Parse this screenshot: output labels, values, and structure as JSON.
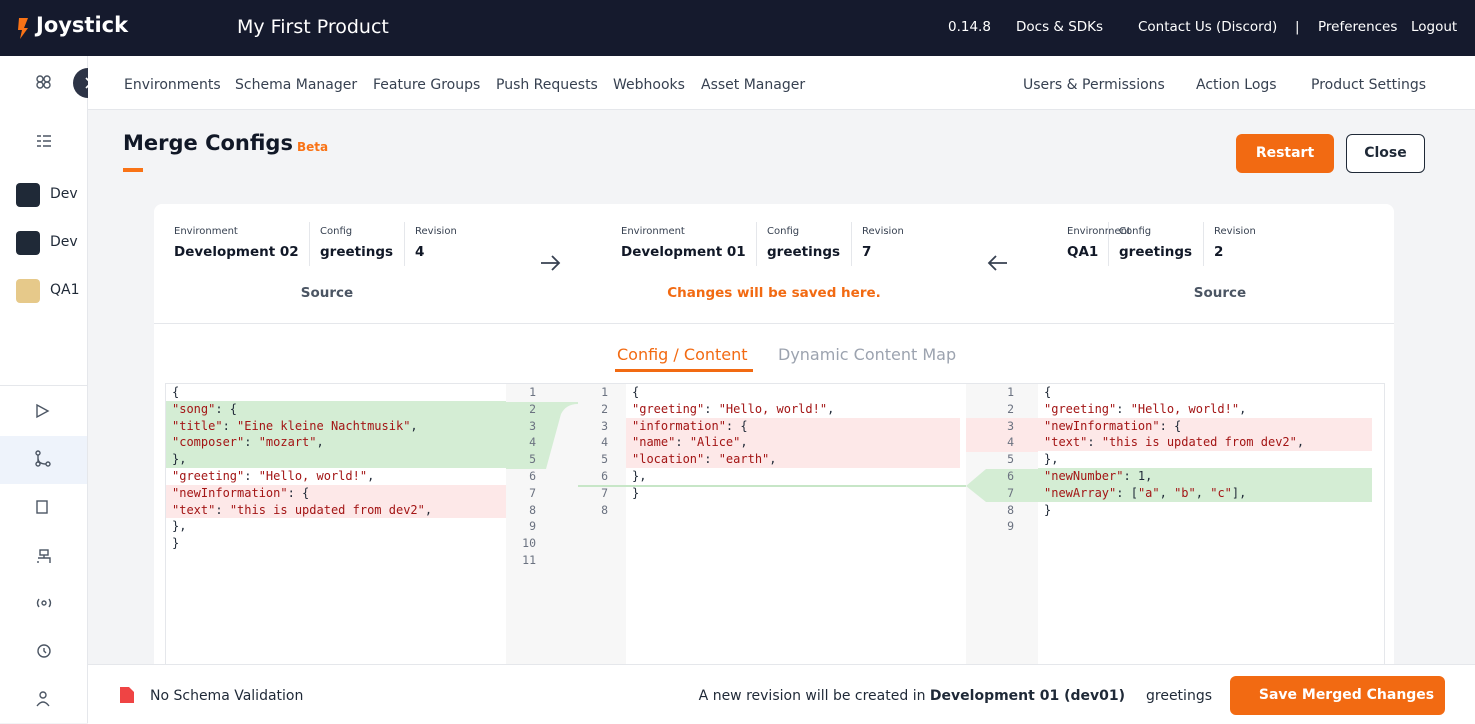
{
  "header": {
    "brand": "Joystick",
    "product": "My First Product",
    "version": "0.14.8",
    "links": [
      "Docs & SDKs",
      "Contact Us (Discord)",
      "|",
      "Preferences",
      "Logout"
    ]
  },
  "nav": {
    "tabs": [
      "Environments",
      "Schema Manager",
      "Feature Groups",
      "Push Requests",
      "Webhooks",
      "Asset Manager"
    ],
    "right": [
      "Users & Permissions",
      "Action Logs",
      "Product Settings"
    ]
  },
  "sidebar": {
    "items": [
      "Dev",
      "Dev",
      "QA1"
    ]
  },
  "page": {
    "title": "Merge Configs",
    "badge": "Beta",
    "restart": "Restart",
    "close": "Close"
  },
  "panels": [
    {
      "environment_label": "Environment",
      "environment": "Development 02",
      "config_label": "Config",
      "config": "greetings",
      "revision_label": "Revision",
      "revision": 4,
      "role": "Source"
    },
    {
      "environment_label": "Environment",
      "environment": "Development 01",
      "config_label": "Config",
      "config": "greetings",
      "revision_label": "Revision",
      "revision": 7,
      "role": "Changes will be saved here."
    },
    {
      "environment_label": "Environment",
      "environment": "QA1",
      "config_label": "Config",
      "config": "greetings",
      "revision_label": "Revision",
      "revision": 2,
      "role": "Source"
    }
  ],
  "tabs": [
    "Config / Content",
    "Dynamic Content Map"
  ],
  "editors": [
    {
      "line_numbers": [
        1,
        2,
        3,
        4,
        5,
        6,
        7,
        8,
        9,
        10,
        11
      ],
      "lines": [
        {
          "text": "{"
        },
        {
          "text": "  \"song\": {",
          "diff": "added"
        },
        {
          "text": "    \"title\": \"Eine kleine Nachtmusik\",",
          "diff": "added"
        },
        {
          "text": "    \"composer\": \"mozart\",",
          "diff": "added"
        },
        {
          "text": "  },",
          "diff": "added"
        },
        {
          "text": "  \"greeting\": \"Hello, world!\","
        },
        {
          "text": "  \"newInformation\": {",
          "diff": "removed"
        },
        {
          "text": "    \"text\": \"this is updated from dev2\",",
          "diff": "removed"
        },
        {
          "text": "  },"
        },
        {
          "text": "}"
        }
      ]
    },
    {
      "line_numbers": [
        1,
        2,
        3,
        4,
        5,
        6,
        7,
        8
      ],
      "lines": [
        {
          "text": "{"
        },
        {
          "text": "  \"greeting\": \"Hello, world!\","
        },
        {
          "text": "  \"information\": {",
          "diff": "removed"
        },
        {
          "text": "    \"name\": \"Alice\",",
          "diff": "removed"
        },
        {
          "text": "    \"location\": \"earth\",",
          "diff": "removed"
        },
        {
          "text": "  },"
        },
        {
          "text": "}"
        }
      ]
    },
    {
      "line_numbers": [
        1,
        2,
        3,
        4,
        5,
        6,
        7,
        8,
        9
      ],
      "lines": [
        {
          "text": "{"
        },
        {
          "text": "  \"greeting\": \"Hello, world!\","
        },
        {
          "text": "  \"newInformation\": {",
          "diff": "removed"
        },
        {
          "text": "    \"text\": \"this is updated from dev2\",",
          "diff": "removed"
        },
        {
          "text": "  },"
        },
        {
          "text": "  \"newNumber\": 1,",
          "diff": "added"
        },
        {
          "text": "  \"newArray\": [\"a\", \"b\", \"c\"],",
          "diff": "added"
        },
        {
          "text": "}"
        }
      ]
    }
  ],
  "footer": {
    "schema": "No Schema Validation",
    "notice": "A new revision will be created in",
    "target": "Development 01 (dev01)",
    "config": "greetings",
    "save": "Save Merged Changes"
  }
}
